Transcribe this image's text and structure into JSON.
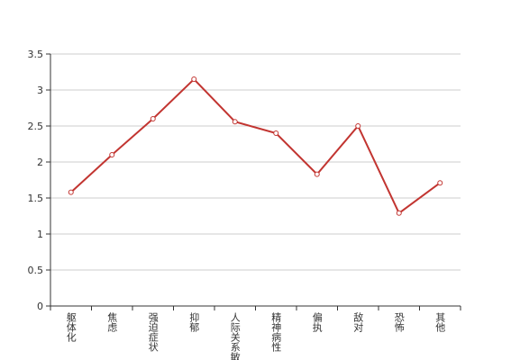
{
  "chart_data": {
    "type": "line",
    "categories": [
      "躯体化",
      "焦虑",
      "强迫症状",
      "抑郁",
      "人际关系敏感",
      "精神病性",
      "偏执",
      "敌对",
      "恐怖",
      "其他"
    ],
    "series": [
      {
        "color": "#c23531",
        "values": [
          1.58,
          2.1,
          2.6,
          3.15,
          2.56,
          2.4,
          1.83,
          2.5,
          1.29,
          1.71
        ]
      }
    ],
    "ylim": [
      0,
      3.5
    ],
    "yticks": [
      0,
      0.5,
      1,
      1.5,
      2,
      2.5,
      3,
      3.5
    ],
    "grid": true
  }
}
